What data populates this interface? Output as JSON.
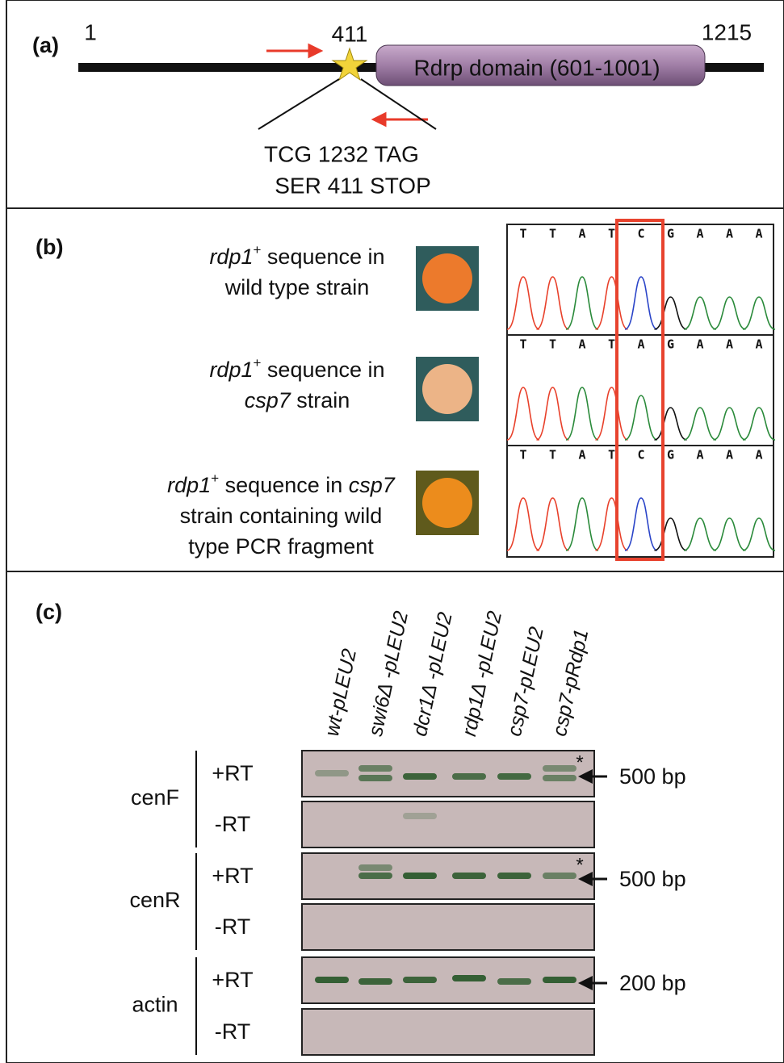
{
  "panel_a": {
    "label": "(a)",
    "positions": [
      "1",
      "411",
      "1215"
    ],
    "domain": "Rdrp domain (601-1001)",
    "mutation": [
      "TCG 1232 TAG",
      "SER 411 STOP"
    ]
  },
  "panel_b": {
    "label": "(b)",
    "rows": [
      {
        "lines": [
          [
            {
              "text": "rdp1",
              "italic": true
            },
            {
              "text": "+",
              "sup": true
            },
            {
              "text": " sequence in"
            }
          ],
          [
            {
              "text": "wild type strain"
            }
          ]
        ]
      },
      {
        "lines": [
          [
            {
              "text": "rdp1",
              "italic": true
            },
            {
              "text": "+",
              "sup": true
            },
            {
              "text": " sequence in"
            }
          ],
          [
            {
              "text": "csp7",
              "italic": true
            },
            {
              "text": " strain"
            }
          ]
        ]
      },
      {
        "lines": [
          [
            {
              "text": "rdp1",
              "italic": true
            },
            {
              "text": "+",
              "sup": true
            },
            {
              "text": " sequence in "
            },
            {
              "text": "csp7",
              "italic": true
            }
          ],
          [
            {
              "text": "strain containing wild"
            }
          ],
          [
            {
              "text": "type PCR fragment"
            }
          ]
        ]
      }
    ],
    "sequences": [
      [
        "T",
        "T",
        "A",
        "T",
        "C",
        "G",
        "A",
        "A",
        "A"
      ],
      [
        "T",
        "T",
        "A",
        "T",
        "A",
        "G",
        "A",
        "A",
        "A"
      ],
      [
        "T",
        "T",
        "A",
        "T",
        "C",
        "G",
        "A",
        "A",
        "A"
      ]
    ]
  },
  "panel_c": {
    "label": "(c)",
    "lanes": [
      "wt-pLEU2",
      "swi6Δ -pLEU2",
      "dcr1Δ -pLEU2",
      "rdp1Δ -pLEU2",
      "csp7-pLEU2",
      "csp7-pRdp1"
    ],
    "groups": [
      {
        "name": "cenF",
        "conditions": [
          "+RT",
          "-RT"
        ],
        "size": "500 bp",
        "asterisk": "*"
      },
      {
        "name": "cenR",
        "conditions": [
          "+RT",
          "-RT"
        ],
        "size": "500 bp",
        "asterisk": "*"
      },
      {
        "name": "actin",
        "conditions": [
          "+RT",
          "-RT"
        ],
        "size": "200 bp"
      }
    ]
  }
}
